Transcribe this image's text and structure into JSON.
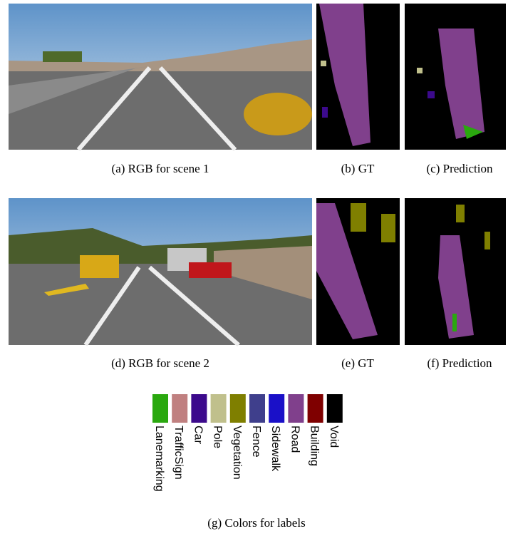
{
  "panels": [
    {
      "caption": "(a) RGB for scene 1"
    },
    {
      "caption": "(b) GT"
    },
    {
      "caption": "(c) Prediction"
    },
    {
      "caption": "(d) RGB for scene 2"
    },
    {
      "caption": "(e) GT"
    },
    {
      "caption": "(f) Prediction"
    }
  ],
  "legend": {
    "caption": "(g) Colors for labels",
    "items": [
      {
        "label": "Lanemarking",
        "color": "#2aa80f"
      },
      {
        "label": "TrafficSign",
        "color": "#c08080"
      },
      {
        "label": "Car",
        "color": "#3c0a8c"
      },
      {
        "label": "Pole",
        "color": "#c0c08c"
      },
      {
        "label": "Vegetation",
        "color": "#7f7f00"
      },
      {
        "label": "Fence",
        "color": "#3f3f8c"
      },
      {
        "label": "Sidewalk",
        "color": "#1a10c8"
      },
      {
        "label": "Road",
        "color": "#80408c"
      },
      {
        "label": "Building",
        "color": "#7f0000"
      },
      {
        "label": "Void",
        "color": "#000000"
      }
    ]
  }
}
